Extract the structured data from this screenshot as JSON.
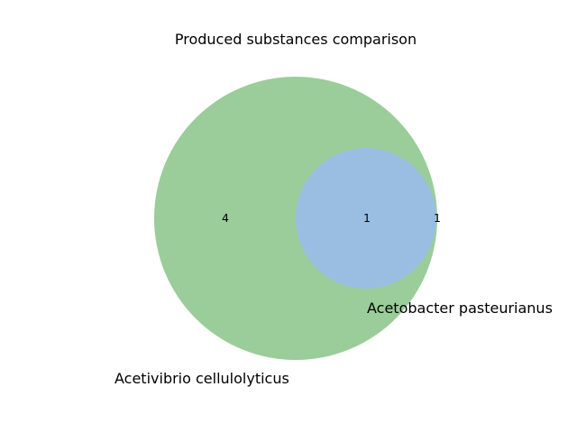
{
  "diagram": {
    "type": "venn2",
    "title": "Produced substances comparison",
    "sets": [
      {
        "name": "Acetivibrio cellulolyticus",
        "color": "#9acd99"
      },
      {
        "name": "Acetobacter pasteurianus",
        "color": "#9abee2"
      }
    ],
    "regions": {
      "only_first": "4",
      "intersection": "1",
      "only_second": "1"
    }
  }
}
